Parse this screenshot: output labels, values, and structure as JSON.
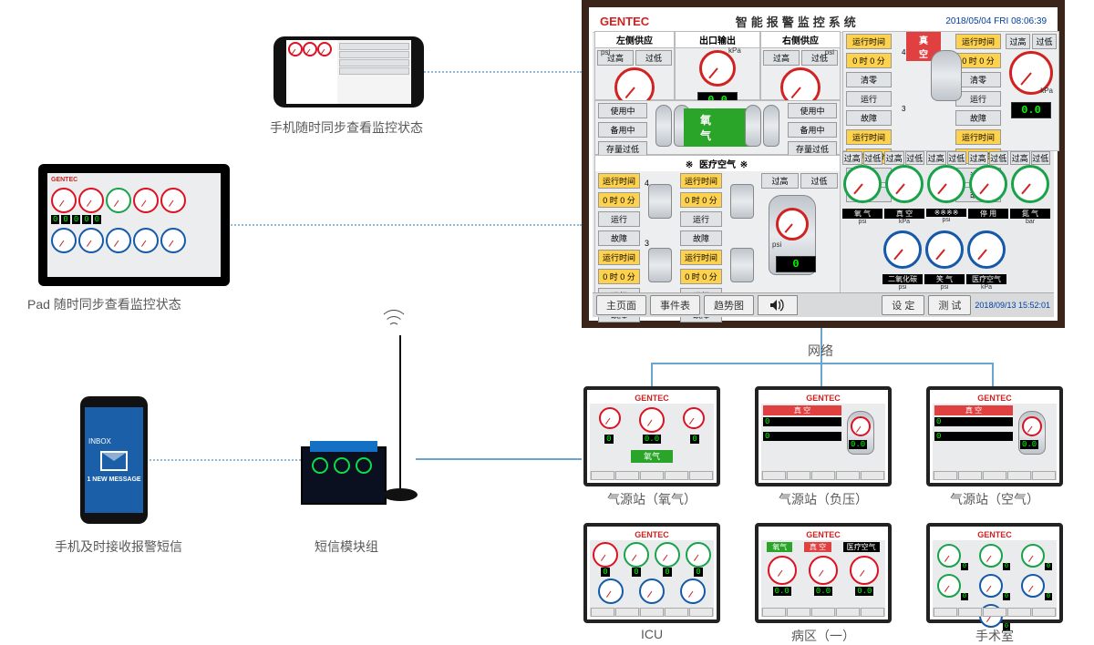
{
  "colors": {
    "brand": "#d12222",
    "accent": "#1370c4",
    "ok": "#2aa52a",
    "warn": "#ffd24d",
    "bad": "#e04040",
    "green_ring": "#19a24a",
    "blue_ring": "#1559a8",
    "red_ring": "#d12222",
    "digital_bg": "#000000",
    "digital_fg": "#00ff00"
  },
  "labels": {
    "phone_sync": "手机随时同步查看监控状态",
    "pad_sync": "Pad 随时同步查看监控状态",
    "phone_sms": "手机及时接收报警短信",
    "sms_module": "短信模块组",
    "network": "网络"
  },
  "phone2": {
    "top": "INBOX",
    "msg": "1 NEW MESSAGE"
  },
  "hmi": {
    "brand": "GENTEC",
    "title": "智能报警监控系统",
    "date": "2018/05/04 FRI  08:06:39",
    "footer": {
      "buttons": [
        "主页面",
        "事件表",
        "趋势图"
      ],
      "right": [
        "设 定",
        "测 试"
      ],
      "ts": "2018/09/13  15:52:01"
    },
    "left_supply": {
      "title": "左侧供应",
      "btns": [
        "过高",
        "过低"
      ],
      "unit": "psi"
    },
    "outlet": {
      "title": "出口输出",
      "unit": "kPa",
      "value": "0.0"
    },
    "right_supply": {
      "title": "右侧供应",
      "btns": [
        "过高",
        "过低"
      ],
      "unit": "psi"
    },
    "vacuum": {
      "title": "真 空",
      "value": "0.0",
      "unit": "kPa",
      "btns": [
        "过高",
        "过低"
      ]
    },
    "run_pairs": [
      {
        "h": "运行时间",
        "v": "0 时 0 分",
        "b": [
          "清零",
          "运行",
          "故障"
        ]
      },
      {
        "h": "运行时间",
        "v": "0 时 0 分",
        "b": [
          "清零",
          "运行",
          "故障"
        ]
      }
    ],
    "mid_left": {
      "btns": [
        "使用中",
        "备用中",
        "存量过低"
      ]
    },
    "mid_center": {
      "lbl": "氧 气"
    },
    "mid_right": {
      "btns": [
        "使用中",
        "备用中",
        "存量过低"
      ]
    },
    "med_air": {
      "title": "医疗空气",
      "pairs": [
        {
          "h": "运行时间",
          "v": "0 时 0 分",
          "b": [
            "运行",
            "故障"
          ]
        },
        {
          "h": "运行时间",
          "v": "0 时 0 分",
          "b": [
            "运行",
            "故障"
          ]
        },
        {
          "h": "运行时间",
          "v": "0 时 0 分",
          "b": [
            "运行",
            "故障"
          ]
        },
        {
          "h": "运行时间",
          "v": "0 时 0 分",
          "b": [
            "运行",
            "故障"
          ]
        }
      ],
      "tank": {
        "unit": "psi",
        "value": "0",
        "btns": [
          "过高",
          "过低"
        ]
      }
    },
    "rgauges_top": [
      {
        "lbl": "氧 气",
        "btns": [
          "过高",
          "过低"
        ],
        "unit": "psi",
        "ring": "#19a24a"
      },
      {
        "lbl": "真 空",
        "btns": [
          "过高",
          "过低"
        ],
        "unit": "kPa",
        "ring": "#19a24a"
      },
      {
        "lbl": "※※※※",
        "btns": [
          "过高",
          "过低"
        ],
        "unit": "psi",
        "ring": "#19a24a"
      },
      {
        "lbl": "停 用",
        "btns": [
          "过高",
          "过低"
        ],
        "unit": "",
        "ring": "#19a24a"
      },
      {
        "lbl": "氮 气",
        "btns": [
          "过高",
          "过低"
        ],
        "unit": "bar",
        "ring": "#19a24a"
      }
    ],
    "rgauges_bot": [
      {
        "lbl": "二氧化碳",
        "unit": "psi",
        "ring": "#1559a8"
      },
      {
        "lbl": "笑 气",
        "unit": "psi",
        "ring": "#1559a8"
      },
      {
        "lbl": "医疗空气",
        "unit": "kPa",
        "ring": "#1559a8"
      }
    ]
  },
  "minis": [
    {
      "label": "气源站（氧气）",
      "type": "oxy"
    },
    {
      "label": "气源站（负压）",
      "type": "vac"
    },
    {
      "label": "气源站（空气）",
      "type": "air"
    },
    {
      "label": "ICU",
      "type": "gauge7"
    },
    {
      "label": "病区（一）",
      "type": "gauge3"
    },
    {
      "label": "手术室",
      "type": "gauge6"
    }
  ],
  "mini_values": {
    "zero": "0",
    "zerof": "0.0"
  }
}
